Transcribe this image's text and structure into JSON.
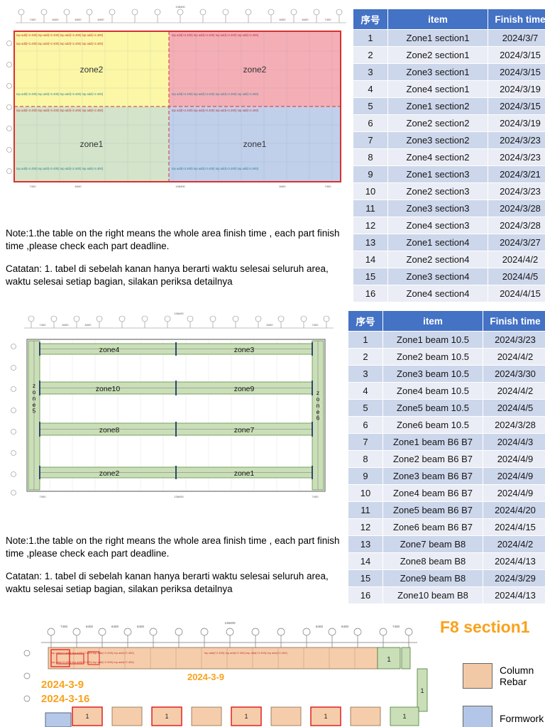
{
  "drawing": {
    "annot_row": "top add(+2.400)     top add(+2.400)     top add(+2.400)     top add(+2.400)",
    "dim_first": "7400",
    "dim": "8400",
    "dim_total": "138400"
  },
  "section1": {
    "plan": {
      "zones": [
        {
          "label": "zone2",
          "color": "#FAF69B"
        },
        {
          "label": "zone2",
          "color": "#F2A3AC"
        },
        {
          "label": "zone1",
          "color": "#CDE0C3"
        },
        {
          "label": "zone1",
          "color": "#B7CAE8"
        }
      ],
      "border_color": "#D93030"
    },
    "table": {
      "headers": [
        "序号",
        "item",
        "Finish time"
      ],
      "rows": [
        [
          "1",
          "Zone1 section1",
          "2024/3/7"
        ],
        [
          "2",
          "Zone2 section1",
          "2024/3/15"
        ],
        [
          "3",
          "Zone3 section1",
          "2024/3/15"
        ],
        [
          "4",
          "Zone4 section1",
          "2024/3/19"
        ],
        [
          "5",
          "Zone1 section2",
          "2024/3/15"
        ],
        [
          "6",
          "Zone2 section2",
          "2024/3/19"
        ],
        [
          "7",
          "Zone3 section2",
          "2024/3/23"
        ],
        [
          "8",
          "Zone4 section2",
          "2024/3/23"
        ],
        [
          "9",
          "Zone1 section3",
          "2024/3/21"
        ],
        [
          "10",
          "Zone2 section3",
          "2024/3/23"
        ],
        [
          "11",
          "Zone3 section3",
          "2024/3/28"
        ],
        [
          "12",
          "Zone4 section3",
          "2024/3/28"
        ],
        [
          "13",
          "Zone1 section4",
          "2024/3/27"
        ],
        [
          "14",
          "Zone2 section4",
          "2024/4/2"
        ],
        [
          "15",
          "Zone3 section4",
          "2024/4/5"
        ],
        [
          "16",
          "Zone4 section4",
          "2024/4/15"
        ]
      ]
    },
    "note_en": "Note:1.the table on the right means the whole area finish time , each part finish time ,please check each part deadline.",
    "note_id": "Catatan: 1. tabel di sebelah kanan hanya berarti waktu selesai seluruh area, waktu selesai setiap bagian, silakan periksa detailnya"
  },
  "section2": {
    "plan": {
      "zones": [
        {
          "label": "zone4"
        },
        {
          "label": "zone3"
        },
        {
          "label": "zone10"
        },
        {
          "label": "zone9"
        },
        {
          "label": "zone8"
        },
        {
          "label": "zone7"
        },
        {
          "label": "zone2"
        },
        {
          "label": "zone1"
        },
        {
          "label": "zone5"
        },
        {
          "label": "zone6"
        }
      ],
      "band_color": "#CADFB8"
    },
    "table": {
      "headers": [
        "序号",
        "item",
        "Finish time"
      ],
      "rows": [
        [
          "1",
          "Zone1 beam 10.5",
          "2024/3/23"
        ],
        [
          "2",
          "Zone2 beam 10.5",
          "2024/4/2"
        ],
        [
          "3",
          "Zone3 beam 10.5",
          "2024/3/30"
        ],
        [
          "4",
          "Zone4  beam 10.5",
          "2024/4/2"
        ],
        [
          "5",
          "Zone5 beam 10.5",
          "2024/4/5"
        ],
        [
          "6",
          "Zone6  beam 10.5",
          "2024/3/28"
        ],
        [
          "7",
          "Zone1 beam B6 B7",
          "2024/4/3"
        ],
        [
          "8",
          "Zone2 beam B6 B7",
          "2024/4/9"
        ],
        [
          "9",
          "Zone3 beam B6 B7",
          "2024/4/9"
        ],
        [
          "10",
          "Zone4 beam B6 B7",
          "2024/4/9"
        ],
        [
          "11",
          "Zone5 beam B6 B7",
          "2024/4/20"
        ],
        [
          "12",
          "Zone6 beam B6 B7",
          "2024/4/15"
        ],
        [
          "13",
          "Zone7 beam  B8",
          "2024/4/2"
        ],
        [
          "14",
          "Zone8 beam  B8",
          "2024/4/13"
        ],
        [
          "15",
          "Zone9 beam B8",
          "2024/3/29"
        ],
        [
          "16",
          "Zone10 beam B8",
          "2024/4/13"
        ]
      ]
    },
    "note_en": "Note:1.the table on the right means the whole area finish time , each part finish time ,please check each part deadline.",
    "note_id": "Catatan: 1. tabel di sebelah kanan hanya berarti waktu selesai seluruh area, waktu selesai setiap bagian, silakan periksa detailnya"
  },
  "section3": {
    "title": "F8 section1",
    "title_color": "#F9A21D",
    "dates": {
      "band": "2024-3-9",
      "line1": "2024-3-9",
      "line2": "2024-3-16"
    },
    "cell_label": "1",
    "legend": [
      {
        "label": "Column Rebar",
        "color": "#F2C9A6"
      },
      {
        "label": "Formwork",
        "color": "#B3C6E7"
      }
    ]
  }
}
